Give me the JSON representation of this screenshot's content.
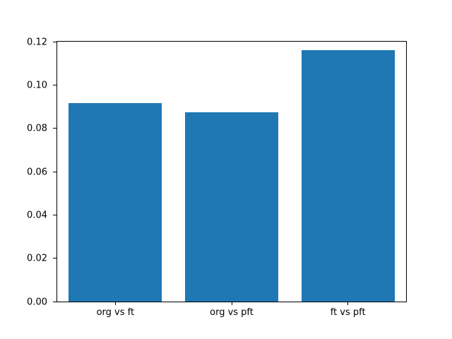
{
  "chart_data": {
    "type": "bar",
    "categories": [
      "org vs ft",
      "org vs pft",
      "ft vs pft"
    ],
    "values": [
      0.0915,
      0.0875,
      0.116
    ],
    "title": "",
    "xlabel": "",
    "ylabel": "",
    "ylim": [
      0,
      0.12
    ],
    "yticks": [
      0.0,
      0.02,
      0.04,
      0.06,
      0.08,
      0.1,
      0.12
    ],
    "ytick_format_decimals": 2,
    "bar_color": "#1f77b4",
    "bar_width_fraction": 0.8,
    "grid": false,
    "legend": null,
    "background_color": "#ffffff",
    "spine_color": "#000000"
  }
}
